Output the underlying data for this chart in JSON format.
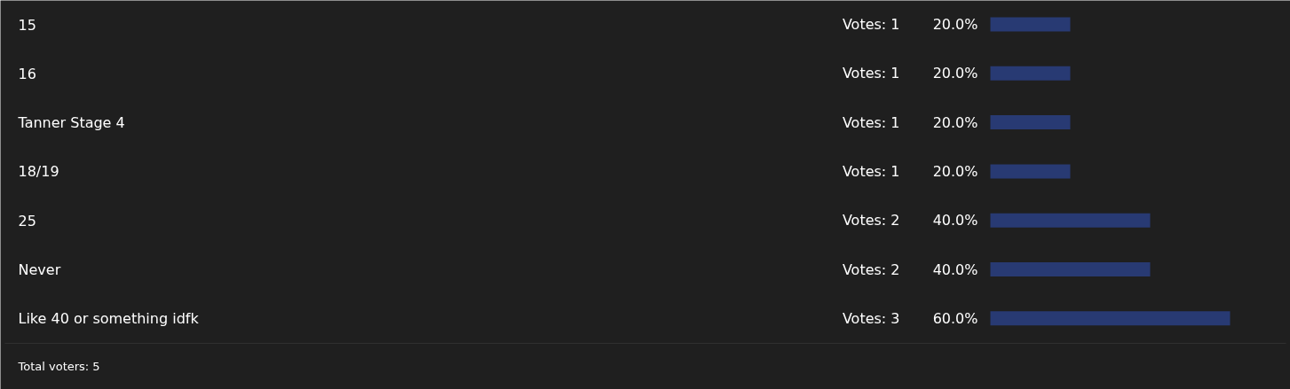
{
  "chart_data": {
    "type": "bar",
    "orientation": "horizontal",
    "categories": [
      "15",
      "16",
      "Tanner Stage 4",
      "18/19",
      "25",
      "Never",
      "Like 40 or something idfk"
    ],
    "values": [
      20.0,
      20.0,
      20.0,
      20.0,
      40.0,
      40.0,
      60.0
    ],
    "value_labels": [
      "20.0%",
      "20.0%",
      "20.0%",
      "20.0%",
      "40.0%",
      "40.0%",
      "60.0%"
    ],
    "color": "#283a73",
    "annotations": [
      "Votes: 1",
      "Votes: 1",
      "Votes: 1",
      "Votes: 1",
      "Votes: 2",
      "Votes: 2",
      "Votes: 3",
      "Total voters: 5"
    ],
    "grid": false
  }
}
